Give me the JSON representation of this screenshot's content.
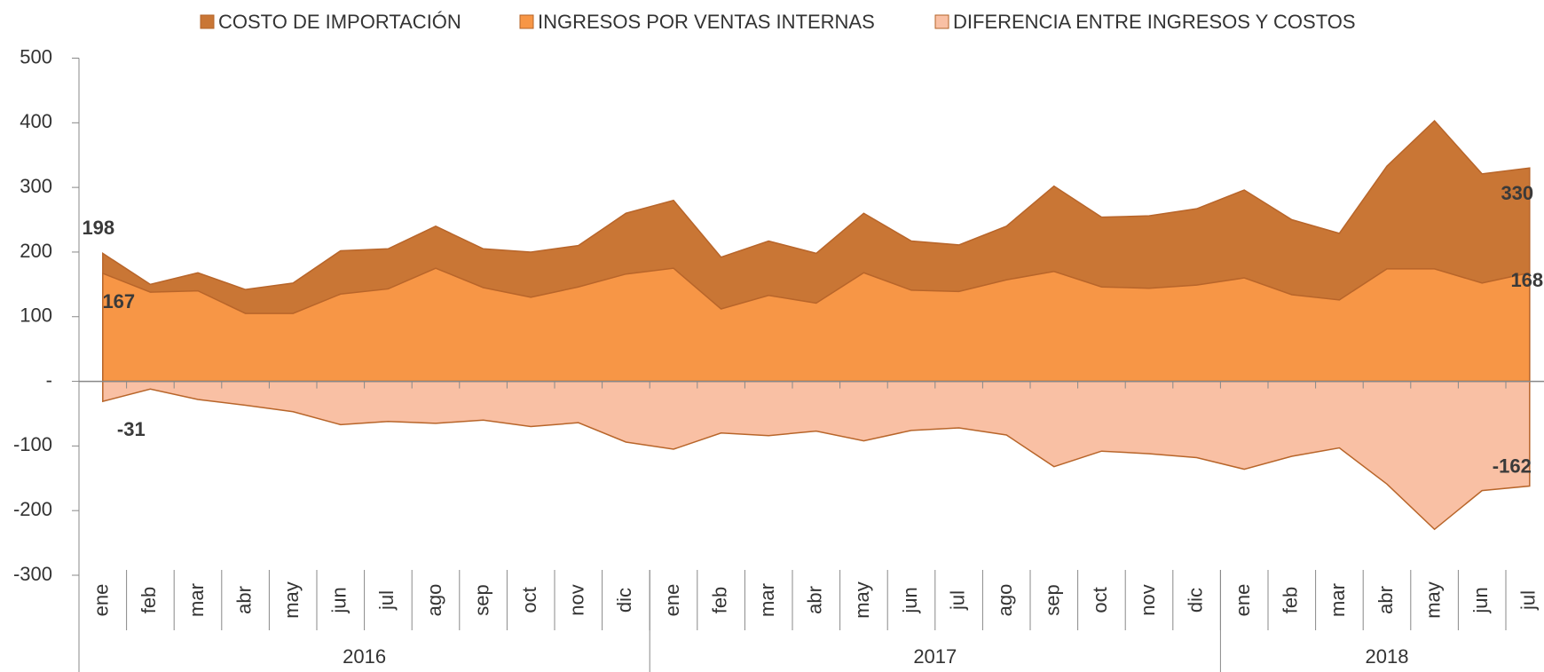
{
  "chart_data": {
    "type": "area",
    "categories": [
      "ene",
      "feb",
      "mar",
      "abr",
      "may",
      "jun",
      "jul",
      "ago",
      "sep",
      "oct",
      "nov",
      "dic",
      "ene",
      "feb",
      "mar",
      "abr",
      "may",
      "jun",
      "jul",
      "ago",
      "sep",
      "oct",
      "nov",
      "dic",
      "ene",
      "feb",
      "mar",
      "abr",
      "may",
      "jun",
      "jul"
    ],
    "years": [
      "2016",
      "2017",
      "2018"
    ],
    "series": [
      {
        "name": "COSTO DE IMPORTACIÓN",
        "color": "#c97635",
        "values": [
          198,
          150,
          168,
          142,
          152,
          202,
          205,
          240,
          205,
          200,
          210,
          260,
          280,
          192,
          217,
          198,
          260,
          217,
          211,
          240,
          302,
          254,
          256,
          267,
          296,
          250,
          229,
          333,
          403,
          321,
          330
        ]
      },
      {
        "name": "INGRESOS POR VENTAS INTERNAS",
        "color": "#f79646",
        "values": [
          167,
          138,
          140,
          105,
          105,
          135,
          143,
          175,
          145,
          130,
          146,
          166,
          175,
          112,
          133,
          121,
          168,
          141,
          139,
          157,
          170,
          146,
          144,
          149,
          160,
          134,
          126,
          174,
          174,
          152,
          168
        ]
      },
      {
        "name": "DIFERENCIA ENTRE INGRESOS Y COSTOS",
        "color": "#f9c0a4",
        "values": [
          -31,
          -12,
          -28,
          -37,
          -47,
          -67,
          -62,
          -65,
          -60,
          -70,
          -64,
          -94,
          -105,
          -80,
          -84,
          -77,
          -92,
          -76,
          -72,
          -83,
          -132,
          -108,
          -112,
          -118,
          -136,
          -116,
          -103,
          -159,
          -229,
          -169,
          -162
        ]
      }
    ],
    "ylim": [
      -300,
      500
    ],
    "yticks": [
      -300,
      -200,
      -100,
      {
        "value": 0,
        "label": "-"
      },
      100,
      200,
      300,
      400,
      500
    ]
  }
}
